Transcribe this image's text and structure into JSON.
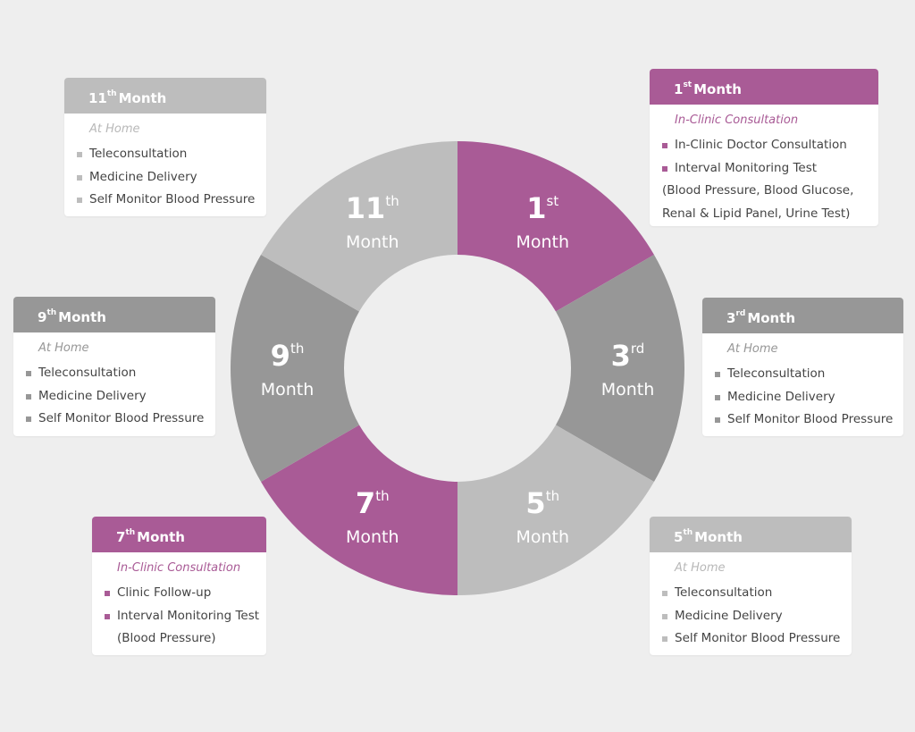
{
  "colors": {
    "magenta": "#a95b96",
    "dark_gray": "#979797",
    "light_gray": "#bdbdbd",
    "sub_gray": "#b8b8b8",
    "sub_magenta": "#a95b96"
  },
  "word_month": "Month",
  "segments": [
    {
      "num": "1",
      "sup": "st",
      "color": "magenta"
    },
    {
      "num": "3",
      "sup": "rd",
      "color": "dark_gray"
    },
    {
      "num": "5",
      "sup": "th",
      "color": "light_gray"
    },
    {
      "num": "7",
      "sup": "th",
      "color": "magenta"
    },
    {
      "num": "9",
      "sup": "th",
      "color": "dark_gray"
    },
    {
      "num": "11",
      "sup": "th",
      "color": "light_gray"
    }
  ],
  "cards": {
    "m1": {
      "num": "1",
      "sup": "st",
      "title": "Month",
      "subtitle": "In-Clinic Consultation",
      "items": [
        "In-Clinic Doctor Consultation",
        "Interval Monitoring Test"
      ],
      "continuation": [
        "(Blood Pressure, Blood Glucose,",
        "Renal & Lipid Panel, Urine Test)"
      ]
    },
    "m3": {
      "num": "3",
      "sup": "rd",
      "title": "Month",
      "subtitle": "At Home",
      "items": [
        "Teleconsultation",
        "Medicine Delivery",
        "Self Monitor Blood Pressure"
      ]
    },
    "m5": {
      "num": "5",
      "sup": "th",
      "title": "Month",
      "subtitle": "At Home",
      "items": [
        "Teleconsultation",
        "Medicine Delivery",
        "Self Monitor Blood Pressure"
      ]
    },
    "m7": {
      "num": "7",
      "sup": "th",
      "title": "Month",
      "subtitle": "In-Clinic Consultation",
      "items": [
        "Clinic Follow-up",
        "Interval Monitoring Test"
      ],
      "continuation": [
        "(Blood Pressure)"
      ]
    },
    "m9": {
      "num": "9",
      "sup": "th",
      "title": "Month",
      "subtitle": "At Home",
      "items": [
        "Teleconsultation",
        "Medicine Delivery",
        "Self Monitor Blood Pressure"
      ]
    },
    "m11": {
      "num": "11",
      "sup": "th",
      "title": "Month",
      "subtitle": "At Home",
      "items": [
        "Teleconsultation",
        "Medicine Delivery",
        "Self Monitor Blood Pressure"
      ]
    }
  }
}
